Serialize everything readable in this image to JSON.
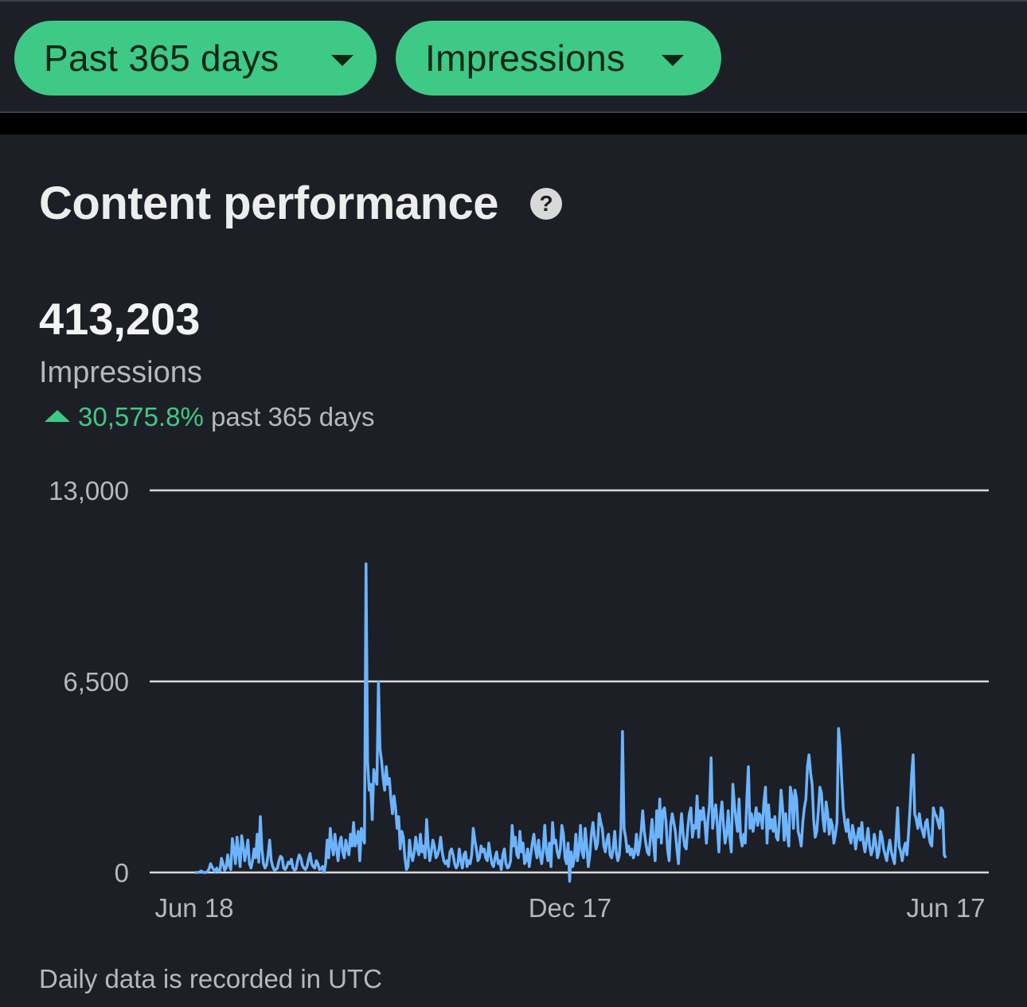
{
  "filters": {
    "range": {
      "label": "Past 365 days",
      "icon": "caret-down-icon"
    },
    "metric": {
      "label": "Impressions",
      "icon": "caret-down-icon"
    }
  },
  "card": {
    "title": "Content performance",
    "help_icon": "question-circle-icon",
    "help_glyph": "?",
    "metric_value": "413,203",
    "metric_label": "Impressions",
    "change_percent": "30,575.8%",
    "change_period": "past 365 days",
    "footnote": "Daily data is recorded in UTC"
  },
  "colors": {
    "accent_green": "#3fc987",
    "line_blue": "#6cb4ff",
    "background": "#1d1f26",
    "gridline": "#d9d9d9"
  },
  "chart_data": {
    "type": "line",
    "ylim": [
      0,
      13000
    ],
    "y_ticks": [
      {
        "value": 0,
        "label": "0"
      },
      {
        "value": 6500,
        "label": "6,500"
      },
      {
        "value": 13000,
        "label": "13,000"
      }
    ],
    "x_tick_labels": [
      "Jun 18",
      "Dec 17",
      "Jun 17"
    ],
    "x_range": [
      0,
      364
    ],
    "x_tick_days": [
      0,
      182,
      364
    ],
    "series": [
      {
        "values": [
          0,
          0,
          0,
          20,
          50,
          10,
          0,
          0,
          30,
          120,
          300,
          180,
          100,
          30,
          150,
          40,
          50,
          480,
          300,
          80,
          150,
          600,
          250,
          100,
          1150,
          800,
          300,
          1200,
          700,
          200,
          1250,
          900,
          400,
          700,
          1100,
          300,
          150,
          400,
          800,
          500,
          1300,
          350,
          1900,
          800,
          300,
          150,
          250,
          600,
          1100,
          400,
          200,
          80,
          100,
          150,
          400,
          550,
          500,
          150,
          100,
          200,
          350,
          300,
          450,
          150,
          80,
          120,
          400,
          600,
          500,
          250,
          150,
          100,
          200,
          450,
          650,
          300,
          200,
          150,
          400,
          300,
          100,
          120,
          200,
          0,
          300,
          1100,
          500,
          1500,
          900,
          600,
          1300,
          800,
          400,
          1000,
          1200,
          700,
          500,
          1100,
          800,
          600,
          1300,
          900,
          1700,
          900,
          1100,
          1400,
          400,
          1500,
          1200,
          1000,
          10500,
          3800,
          2800,
          3000,
          1800,
          3500,
          3200,
          3000,
          6500,
          4200,
          3800,
          3200,
          2800,
          3600,
          3000,
          3200,
          2500,
          2000,
          2600,
          2200,
          1500,
          1900,
          800,
          1400,
          1200,
          500,
          100,
          200,
          1100,
          600,
          400,
          700,
          1200,
          800,
          600,
          1300,
          700,
          900,
          500,
          1800,
          900,
          400,
          700,
          1100,
          900,
          500,
          600,
          800,
          1200,
          700,
          400,
          300,
          400,
          200,
          700,
          800,
          600,
          300,
          150,
          250,
          800,
          400,
          150,
          600,
          700,
          200,
          400,
          300,
          600,
          1500,
          1100,
          800,
          400,
          500,
          900,
          700,
          800,
          500,
          400,
          1000,
          600,
          300,
          200,
          500,
          700,
          300,
          400,
          100,
          600,
          800,
          300,
          150,
          200,
          400,
          1600,
          900,
          1200,
          600,
          500,
          1400,
          700,
          1000,
          300,
          400,
          800,
          200,
          600,
          1000,
          1300,
          800,
          500,
          1100,
          600,
          300,
          800,
          1600,
          700,
          400,
          1000,
          200,
          1700,
          1000,
          1100,
          700,
          500,
          800,
          1600,
          1300,
          500,
          300,
          1000,
          -300,
          700,
          200,
          500,
          1300,
          400,
          800,
          1600,
          700,
          500,
          1500,
          900,
          200,
          600,
          1300,
          1700,
          1200,
          800,
          1000,
          2000,
          1700,
          1500,
          900,
          700,
          1100,
          1300,
          600,
          500,
          800,
          1400,
          700,
          400,
          600,
          1500,
          4800,
          1500,
          1200,
          700,
          900,
          600,
          800,
          500,
          700,
          1300,
          600,
          900,
          1400,
          2100,
          1400,
          1000,
          700,
          600,
          1200,
          1800,
          1000,
          400,
          2100,
          1200,
          2500,
          1000,
          2100,
          2200,
          1700,
          800,
          400,
          1600,
          2000,
          1700,
          1400,
          800,
          300,
          1300,
          2000,
          1300,
          900,
          800,
          1500,
          2000,
          2200,
          1200,
          1600,
          1500,
          2600,
          1200,
          2100,
          1800,
          2200,
          1700,
          1000,
          1800,
          2300,
          3900,
          1500,
          2000,
          2300,
          1600,
          700,
          1900,
          2400,
          1600,
          1000,
          1300,
          2100,
          1200,
          700,
          3000,
          2300,
          1800,
          1400,
          2500,
          1200,
          900,
          1300,
          1000,
          2500,
          3600,
          1500,
          2000,
          1400,
          1800,
          2200,
          1600,
          2000,
          1900,
          1500,
          2400,
          2900,
          1000,
          2300,
          1500,
          1800,
          1400,
          1900,
          1200,
          1100,
          1800,
          2800,
          2200,
          1100,
          2000,
          1300,
          900,
          2900,
          2600,
          1500,
          2800,
          2500,
          1400,
          1200,
          900,
          1700,
          2200,
          2500,
          3600,
          4000,
          3400,
          3000,
          1800,
          1200,
          1400,
          2100,
          2900,
          2700,
          1800,
          1400,
          2400,
          2000,
          1300,
          1800,
          1600,
          1000,
          1300,
          1700,
          4900,
          4300,
          3200,
          2200,
          1700,
          1400,
          1800,
          1200,
          1000,
          1600,
          1300,
          800,
          1200,
          1500,
          1100,
          1700,
          1000,
          700,
          1100,
          1500,
          900,
          600,
          800,
          1300,
          1000,
          500,
          700,
          1400,
          1200,
          800,
          600,
          400,
          800,
          1100,
          700,
          500,
          300,
          1200,
          2200,
          900,
          700,
          400,
          800,
          1000,
          600,
          1300,
          2200,
          3300,
          4000,
          2000,
          1800,
          1500,
          2000,
          1600,
          1400,
          1200,
          1700,
          1800,
          1300,
          1000,
          900,
          2200,
          2000,
          1900,
          1700,
          1500,
          2200,
          2100,
          600,
          500
        ]
      }
    ],
    "grid": true
  }
}
